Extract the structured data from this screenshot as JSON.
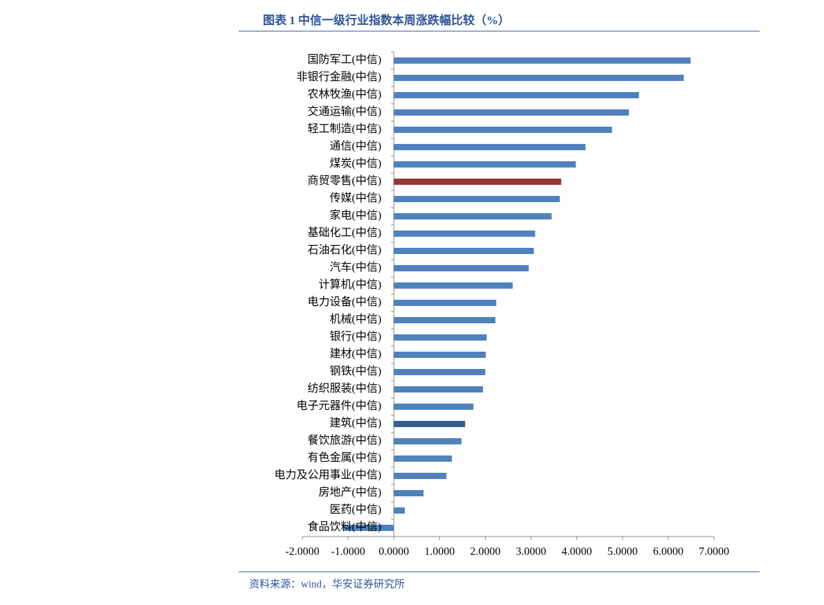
{
  "chart_data": {
    "type": "bar",
    "orientation": "horizontal",
    "title": "图表 1 中信一级行业指数本周涨跌幅比较（%）",
    "source": "资料来源：wind，华安证券研究所",
    "categories": [
      "国防军工(中信)",
      "非银行金融(中信)",
      "农林牧渔(中信)",
      "交通运输(中信)",
      "轻工制造(中信)",
      "通信(中信)",
      "煤炭(中信)",
      "商贸零售(中信)",
      "传媒(中信)",
      "家电(中信)",
      "基础化工(中信)",
      "石油石化(中信)",
      "汽车(中信)",
      "计算机(中信)",
      "电力设备(中信)",
      "机械(中信)",
      "银行(中信)",
      "建材(中信)",
      "钢铁(中信)",
      "纺织服装(中信)",
      "电子元器件(中信)",
      "建筑(中信)",
      "餐饮旅游(中信)",
      "有色金属(中信)",
      "电力及公用事业(中信)",
      "房地产(中信)",
      "医药(中信)",
      "食品饮料(中信)"
    ],
    "values": [
      6.49,
      6.34,
      5.36,
      5.14,
      4.77,
      4.19,
      3.98,
      3.66,
      3.63,
      3.45,
      3.09,
      3.06,
      2.95,
      2.6,
      2.24,
      2.22,
      2.03,
      2.01,
      2.0,
      1.95,
      1.74,
      1.56,
      1.48,
      1.27,
      1.15,
      0.65,
      0.24,
      -1.09
    ],
    "colors": [
      "#4f81bd",
      "#4f81bd",
      "#4f81bd",
      "#4f81bd",
      "#4f81bd",
      "#4f81bd",
      "#4f81bd",
      "#953735",
      "#4f81bd",
      "#4f81bd",
      "#4f81bd",
      "#4f81bd",
      "#4f81bd",
      "#4f81bd",
      "#4f81bd",
      "#4f81bd",
      "#4f81bd",
      "#4f81bd",
      "#4f81bd",
      "#4f81bd",
      "#4f81bd",
      "#345e8f",
      "#4f81bd",
      "#4f81bd",
      "#4f81bd",
      "#4f81bd",
      "#4f81bd",
      "#4f81bd"
    ],
    "xlim": [
      -2,
      7
    ],
    "xticks": [
      {
        "value": -2,
        "label": "-2.0000"
      },
      {
        "value": -1,
        "label": "-1.0000"
      },
      {
        "value": 0,
        "label": "0.0000"
      },
      {
        "value": 1,
        "label": "1.0000"
      },
      {
        "value": 2,
        "label": "2.0000"
      },
      {
        "value": 3,
        "label": "3.0000"
      },
      {
        "value": 4,
        "label": "4.0000"
      },
      {
        "value": 5,
        "label": "5.0000"
      },
      {
        "value": 6,
        "label": "6.0000"
      },
      {
        "value": 7,
        "label": "7.0000"
      }
    ],
    "grid": false
  }
}
